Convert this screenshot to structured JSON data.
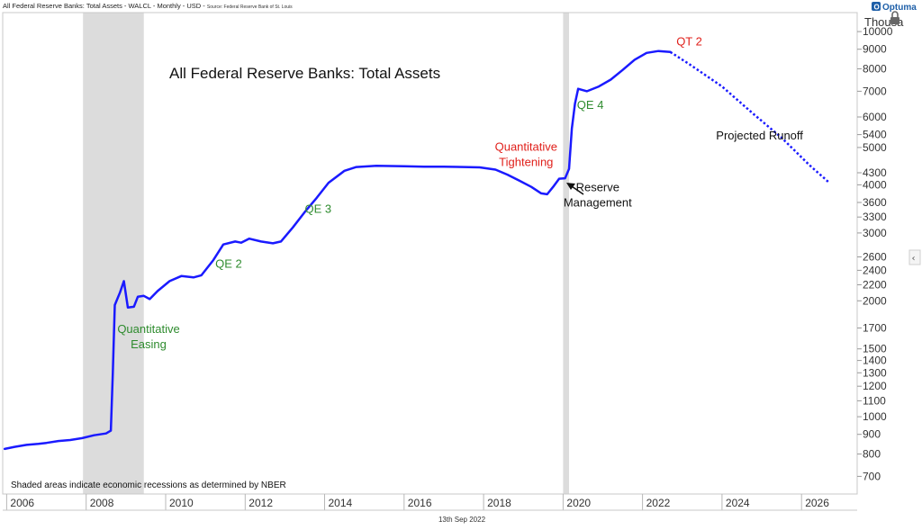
{
  "header": {
    "series_title": "All Federal Reserve Banks: Total Assets - WALCL - Monthly - USD - ",
    "source": "Source: Federal Reserve Bank of St. Louis",
    "brand": "Optuma"
  },
  "footer": {
    "date": "13th Sep 2022",
    "recession_note": "Shaded areas indicate economic recessions as determined by NBER"
  },
  "colors": {
    "series": "#1a1aff",
    "recession": "#dcdcdc",
    "qe_label": "#2e8b2e",
    "qt_label": "#e0201b",
    "text": "#111111",
    "brand": "#1e5fa8"
  },
  "chart_data": {
    "type": "line",
    "title": "All Federal Reserve Banks: Total Assets",
    "y_unit_label": "Thousa",
    "y_scale": "log",
    "xlim": [
      2005.9,
      2027.4
    ],
    "ylim": [
      630,
      11200
    ],
    "x_ticks": [
      "2006",
      "2008",
      "2010",
      "2012",
      "2014",
      "2016",
      "2018",
      "2020",
      "2022",
      "2024",
      "2026"
    ],
    "y_ticks": [
      700,
      800,
      900,
      1000,
      1100,
      1200,
      1300,
      1400,
      1500,
      1700,
      2000,
      2200,
      2400,
      2600,
      3000,
      3300,
      3600,
      4000,
      4300,
      5000,
      5400,
      6000,
      7000,
      8000,
      9000,
      10000
    ],
    "recessions": [
      [
        2007.92,
        2009.45
      ],
      [
        2020.0,
        2020.15
      ]
    ],
    "series": [
      {
        "style": "solid",
        "points": [
          [
            2005.95,
            825
          ],
          [
            2006.2,
            835
          ],
          [
            2006.5,
            845
          ],
          [
            2006.8,
            850
          ],
          [
            2007.0,
            855
          ],
          [
            2007.3,
            865
          ],
          [
            2007.6,
            870
          ],
          [
            2007.9,
            880
          ],
          [
            2008.2,
            895
          ],
          [
            2008.5,
            905
          ],
          [
            2008.62,
            920
          ],
          [
            2008.67,
            1300
          ],
          [
            2008.72,
            1950
          ],
          [
            2008.85,
            2100
          ],
          [
            2008.95,
            2250
          ],
          [
            2009.05,
            1920
          ],
          [
            2009.2,
            1930
          ],
          [
            2009.3,
            2050
          ],
          [
            2009.45,
            2060
          ],
          [
            2009.6,
            2020
          ],
          [
            2009.8,
            2120
          ],
          [
            2010.1,
            2250
          ],
          [
            2010.4,
            2320
          ],
          [
            2010.7,
            2300
          ],
          [
            2010.9,
            2330
          ],
          [
            2011.2,
            2550
          ],
          [
            2011.45,
            2800
          ],
          [
            2011.75,
            2850
          ],
          [
            2011.9,
            2830
          ],
          [
            2012.1,
            2900
          ],
          [
            2012.4,
            2850
          ],
          [
            2012.7,
            2820
          ],
          [
            2012.9,
            2850
          ],
          [
            2013.2,
            3100
          ],
          [
            2013.5,
            3400
          ],
          [
            2013.8,
            3700
          ],
          [
            2014.1,
            4050
          ],
          [
            2014.5,
            4350
          ],
          [
            2014.8,
            4450
          ],
          [
            2015.3,
            4480
          ],
          [
            2016.0,
            4470
          ],
          [
            2016.5,
            4460
          ],
          [
            2017.0,
            4460
          ],
          [
            2017.5,
            4450
          ],
          [
            2017.9,
            4440
          ],
          [
            2018.3,
            4380
          ],
          [
            2018.6,
            4250
          ],
          [
            2018.9,
            4100
          ],
          [
            2019.2,
            3950
          ],
          [
            2019.45,
            3800
          ],
          [
            2019.6,
            3780
          ],
          [
            2019.75,
            3950
          ],
          [
            2019.9,
            4150
          ],
          [
            2020.05,
            4160
          ],
          [
            2020.15,
            4400
          ],
          [
            2020.22,
            5600
          ],
          [
            2020.3,
            6500
          ],
          [
            2020.38,
            7100
          ],
          [
            2020.6,
            7000
          ],
          [
            2020.9,
            7200
          ],
          [
            2021.2,
            7500
          ],
          [
            2021.5,
            7950
          ],
          [
            2021.8,
            8450
          ],
          [
            2022.1,
            8800
          ],
          [
            2022.4,
            8900
          ],
          [
            2022.7,
            8850
          ]
        ]
      },
      {
        "style": "dotted",
        "points": [
          [
            2022.7,
            8850
          ],
          [
            2023.2,
            8200
          ],
          [
            2024.0,
            7200
          ],
          [
            2024.8,
            6100
          ],
          [
            2025.5,
            5300
          ],
          [
            2026.2,
            4500
          ],
          [
            2026.7,
            4050
          ]
        ]
      }
    ],
    "annotations": [
      {
        "lines": [
          "QT 2"
        ],
        "color_key": "qt_label",
        "x": 2022.85,
        "y": 9200
      },
      {
        "lines": [
          "QE 4"
        ],
        "color_key": "qe_label",
        "x": 2020.35,
        "y": 6300
      },
      {
        "lines": [
          "Projected Runoff"
        ],
        "color_key": "text",
        "x": 2023.85,
        "y": 5250
      },
      {
        "lines": [
          "Quantitative",
          "Tightening"
        ],
        "color_key": "qt_label",
        "x": 2018.3,
        "y": 4900
      },
      {
        "lines": [
          "Reserve",
          "Management"
        ],
        "color_key": "text",
        "x": 2020.1,
        "y": 3850
      },
      {
        "lines": [
          "QE 3"
        ],
        "color_key": "qe_label",
        "x": 2013.5,
        "y": 3380
      },
      {
        "lines": [
          "QE 2"
        ],
        "color_key": "qe_label",
        "x": 2011.25,
        "y": 2440
      },
      {
        "lines": [
          "Quantitative",
          "Easing"
        ],
        "color_key": "qe_label",
        "x": 2008.8,
        "y": 1650
      }
    ]
  }
}
